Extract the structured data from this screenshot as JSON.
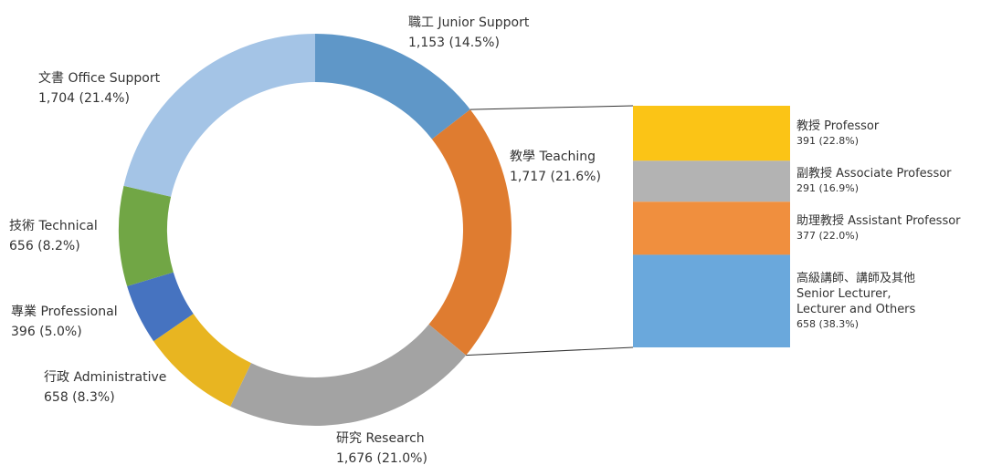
{
  "chart_data": [
    {
      "type": "pie",
      "donut": true,
      "categories": [
        "職工 Junior Support",
        "教學 Teaching",
        "研究 Research",
        "行政 Administrative",
        "專業 Professional",
        "技術 Technical",
        "文書 Office Support"
      ],
      "values": [
        1153,
        1717,
        1676,
        658,
        396,
        656,
        1704
      ],
      "value_labels": [
        "1,153 (14.5%)",
        "1,717 (21.6%)",
        "1,676 (21.0%)",
        "658 (8.3%)",
        "396 (5.0%)",
        "656 (8.2%)",
        "1,704 (21.4%)"
      ],
      "colors": [
        "#5f97c8",
        "#df7c30",
        "#a3a3a3",
        "#e8b521",
        "#4673c0",
        "#71a645",
        "#a4c4e6"
      ]
    },
    {
      "type": "bar",
      "stacked": true,
      "categories": [
        "教授 Professor",
        "副教授 Associate Professor",
        "助理教授 Assistant Professor",
        "高級講師、講師及其他\nSenior Lecturer,\nLecturer and Others"
      ],
      "values": [
        391,
        291,
        377,
        658
      ],
      "value_labels": [
        "391 (22.8%)",
        "291 (16.9%)",
        "377 (22.0%)",
        "658 (38.3%)"
      ],
      "colors": [
        "#fbc416",
        "#b3b3b3",
        "#f08f3e",
        "#6aa8dc"
      ]
    }
  ]
}
